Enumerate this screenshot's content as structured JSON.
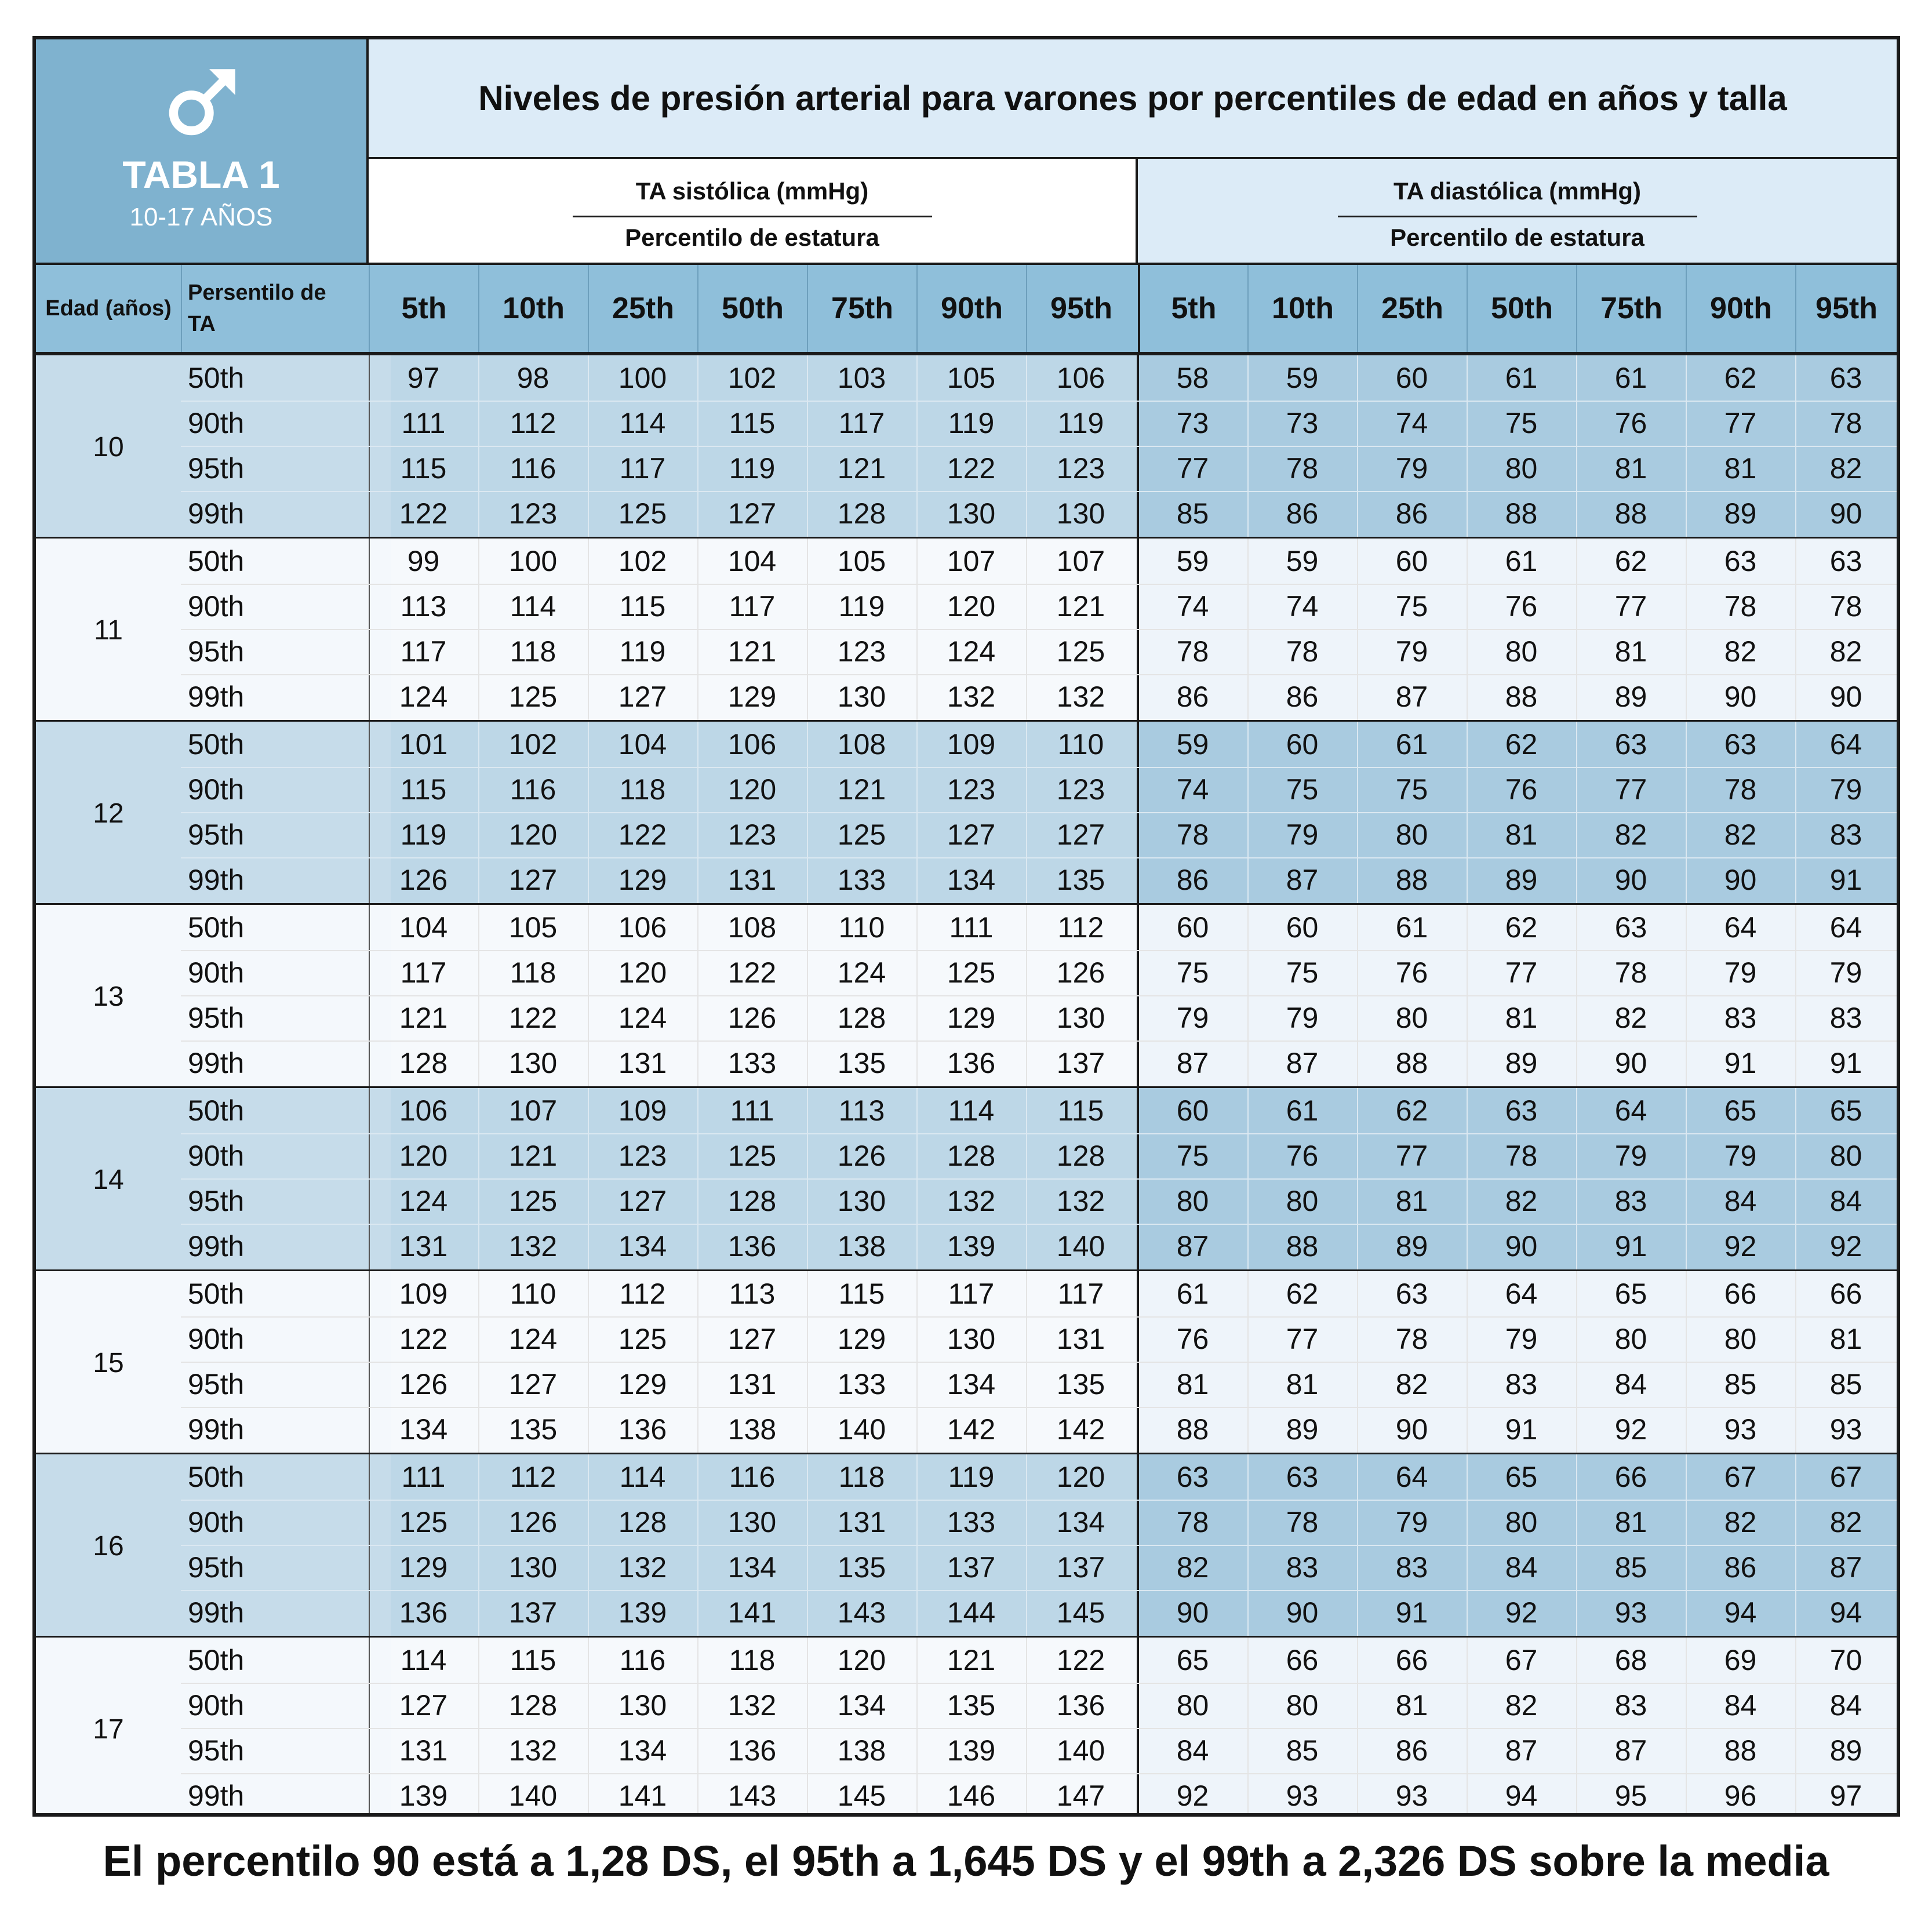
{
  "badge": {
    "icon": "male-symbol-icon",
    "name": "TABLA 1",
    "subtitle": "10-17 AÑOS"
  },
  "title": "Niveles de presión arterial para varones por percentiles de edad en años y talla",
  "systolic": {
    "label": "TA sistólica (mmHg)",
    "sublabel": "Percentilo de estatura"
  },
  "diastolic": {
    "label": "TA diastólica (mmHg)",
    "sublabel": "Percentilo de estatura"
  },
  "columns": {
    "age": "Edad (años)",
    "percentile_line1": "Persentilo de",
    "percentile_line2": "TA"
  },
  "height_percentiles": [
    "5th",
    "10th",
    "25th",
    "50th",
    "75th",
    "90th",
    "95th"
  ],
  "colors": {
    "dark_row": "#c6dcea",
    "light_row": "#f4f8fc",
    "header": "#8fbfda",
    "badge": "#7fb2cf"
  },
  "groups": [
    {
      "age": "10",
      "rows": [
        {
          "p": "50th",
          "sys": [
            97,
            98,
            100,
            102,
            103,
            105,
            106
          ],
          "dia": [
            58,
            59,
            60,
            61,
            61,
            62,
            63
          ]
        },
        {
          "p": "90th",
          "sys": [
            111,
            112,
            114,
            115,
            117,
            119,
            119
          ],
          "dia": [
            73,
            73,
            74,
            75,
            76,
            77,
            78
          ]
        },
        {
          "p": "95th",
          "sys": [
            115,
            116,
            117,
            119,
            121,
            122,
            123
          ],
          "dia": [
            77,
            78,
            79,
            80,
            81,
            81,
            82
          ]
        },
        {
          "p": "99th",
          "sys": [
            122,
            123,
            125,
            127,
            128,
            130,
            130
          ],
          "dia": [
            85,
            86,
            86,
            88,
            88,
            89,
            90
          ]
        }
      ]
    },
    {
      "age": "11",
      "rows": [
        {
          "p": "50th",
          "sys": [
            99,
            100,
            102,
            104,
            105,
            107,
            107
          ],
          "dia": [
            59,
            59,
            60,
            61,
            62,
            63,
            63
          ]
        },
        {
          "p": "90th",
          "sys": [
            113,
            114,
            115,
            117,
            119,
            120,
            121
          ],
          "dia": [
            74,
            74,
            75,
            76,
            77,
            78,
            78
          ]
        },
        {
          "p": "95th",
          "sys": [
            117,
            118,
            119,
            121,
            123,
            124,
            125
          ],
          "dia": [
            78,
            78,
            79,
            80,
            81,
            82,
            82
          ]
        },
        {
          "p": "99th",
          "sys": [
            124,
            125,
            127,
            129,
            130,
            132,
            132
          ],
          "dia": [
            86,
            86,
            87,
            88,
            89,
            90,
            90
          ]
        }
      ]
    },
    {
      "age": "12",
      "rows": [
        {
          "p": "50th",
          "sys": [
            101,
            102,
            104,
            106,
            108,
            109,
            110
          ],
          "dia": [
            59,
            60,
            61,
            62,
            63,
            63,
            64
          ]
        },
        {
          "p": "90th",
          "sys": [
            115,
            116,
            118,
            120,
            121,
            123,
            123
          ],
          "dia": [
            74,
            75,
            75,
            76,
            77,
            78,
            79
          ]
        },
        {
          "p": "95th",
          "sys": [
            119,
            120,
            122,
            123,
            125,
            127,
            127
          ],
          "dia": [
            78,
            79,
            80,
            81,
            82,
            82,
            83
          ]
        },
        {
          "p": "99th",
          "sys": [
            126,
            127,
            129,
            131,
            133,
            134,
            135
          ],
          "dia": [
            86,
            87,
            88,
            89,
            90,
            90,
            91
          ]
        }
      ]
    },
    {
      "age": "13",
      "rows": [
        {
          "p": "50th",
          "sys": [
            104,
            105,
            106,
            108,
            110,
            111,
            112
          ],
          "dia": [
            60,
            60,
            61,
            62,
            63,
            64,
            64
          ]
        },
        {
          "p": "90th",
          "sys": [
            117,
            118,
            120,
            122,
            124,
            125,
            126
          ],
          "dia": [
            75,
            75,
            76,
            77,
            78,
            79,
            79
          ]
        },
        {
          "p": "95th",
          "sys": [
            121,
            122,
            124,
            126,
            128,
            129,
            130
          ],
          "dia": [
            79,
            79,
            80,
            81,
            82,
            83,
            83
          ]
        },
        {
          "p": "99th",
          "sys": [
            128,
            130,
            131,
            133,
            135,
            136,
            137
          ],
          "dia": [
            87,
            87,
            88,
            89,
            90,
            91,
            91
          ]
        }
      ]
    },
    {
      "age": "14",
      "rows": [
        {
          "p": "50th",
          "sys": [
            106,
            107,
            109,
            111,
            113,
            114,
            115
          ],
          "dia": [
            60,
            61,
            62,
            63,
            64,
            65,
            65
          ]
        },
        {
          "p": "90th",
          "sys": [
            120,
            121,
            123,
            125,
            126,
            128,
            128
          ],
          "dia": [
            75,
            76,
            77,
            78,
            79,
            79,
            80
          ]
        },
        {
          "p": "95th",
          "sys": [
            124,
            125,
            127,
            128,
            130,
            132,
            132
          ],
          "dia": [
            80,
            80,
            81,
            82,
            83,
            84,
            84
          ]
        },
        {
          "p": "99th",
          "sys": [
            131,
            132,
            134,
            136,
            138,
            139,
            140
          ],
          "dia": [
            87,
            88,
            89,
            90,
            91,
            92,
            92
          ]
        }
      ]
    },
    {
      "age": "15",
      "rows": [
        {
          "p": "50th",
          "sys": [
            109,
            110,
            112,
            113,
            115,
            117,
            117
          ],
          "dia": [
            61,
            62,
            63,
            64,
            65,
            66,
            66
          ]
        },
        {
          "p": "90th",
          "sys": [
            122,
            124,
            125,
            127,
            129,
            130,
            131
          ],
          "dia": [
            76,
            77,
            78,
            79,
            80,
            80,
            81
          ]
        },
        {
          "p": "95th",
          "sys": [
            126,
            127,
            129,
            131,
            133,
            134,
            135
          ],
          "dia": [
            81,
            81,
            82,
            83,
            84,
            85,
            85
          ]
        },
        {
          "p": "99th",
          "sys": [
            134,
            135,
            136,
            138,
            140,
            142,
            142
          ],
          "dia": [
            88,
            89,
            90,
            91,
            92,
            93,
            93
          ]
        }
      ]
    },
    {
      "age": "16",
      "rows": [
        {
          "p": "50th",
          "sys": [
            111,
            112,
            114,
            116,
            118,
            119,
            120
          ],
          "dia": [
            63,
            63,
            64,
            65,
            66,
            67,
            67
          ]
        },
        {
          "p": "90th",
          "sys": [
            125,
            126,
            128,
            130,
            131,
            133,
            134
          ],
          "dia": [
            78,
            78,
            79,
            80,
            81,
            82,
            82
          ]
        },
        {
          "p": "95th",
          "sys": [
            129,
            130,
            132,
            134,
            135,
            137,
            137
          ],
          "dia": [
            82,
            83,
            83,
            84,
            85,
            86,
            87
          ]
        },
        {
          "p": "99th",
          "sys": [
            136,
            137,
            139,
            141,
            143,
            144,
            145
          ],
          "dia": [
            90,
            90,
            91,
            92,
            93,
            94,
            94
          ]
        }
      ]
    },
    {
      "age": "17",
      "rows": [
        {
          "p": "50th",
          "sys": [
            114,
            115,
            116,
            118,
            120,
            121,
            122
          ],
          "dia": [
            65,
            66,
            66,
            67,
            68,
            69,
            70
          ]
        },
        {
          "p": "90th",
          "sys": [
            127,
            128,
            130,
            132,
            134,
            135,
            136
          ],
          "dia": [
            80,
            80,
            81,
            82,
            83,
            84,
            84
          ]
        },
        {
          "p": "95th",
          "sys": [
            131,
            132,
            134,
            136,
            138,
            139,
            140
          ],
          "dia": [
            84,
            85,
            86,
            87,
            87,
            88,
            89
          ]
        },
        {
          "p": "99th",
          "sys": [
            139,
            140,
            141,
            143,
            145,
            146,
            147
          ],
          "dia": [
            92,
            93,
            93,
            94,
            95,
            96,
            97
          ]
        }
      ]
    }
  ],
  "footer": "El percentilo 90 está a 1,28 DS, el 95th a 1,645 DS y el 99th a 2,326 DS sobre la media"
}
